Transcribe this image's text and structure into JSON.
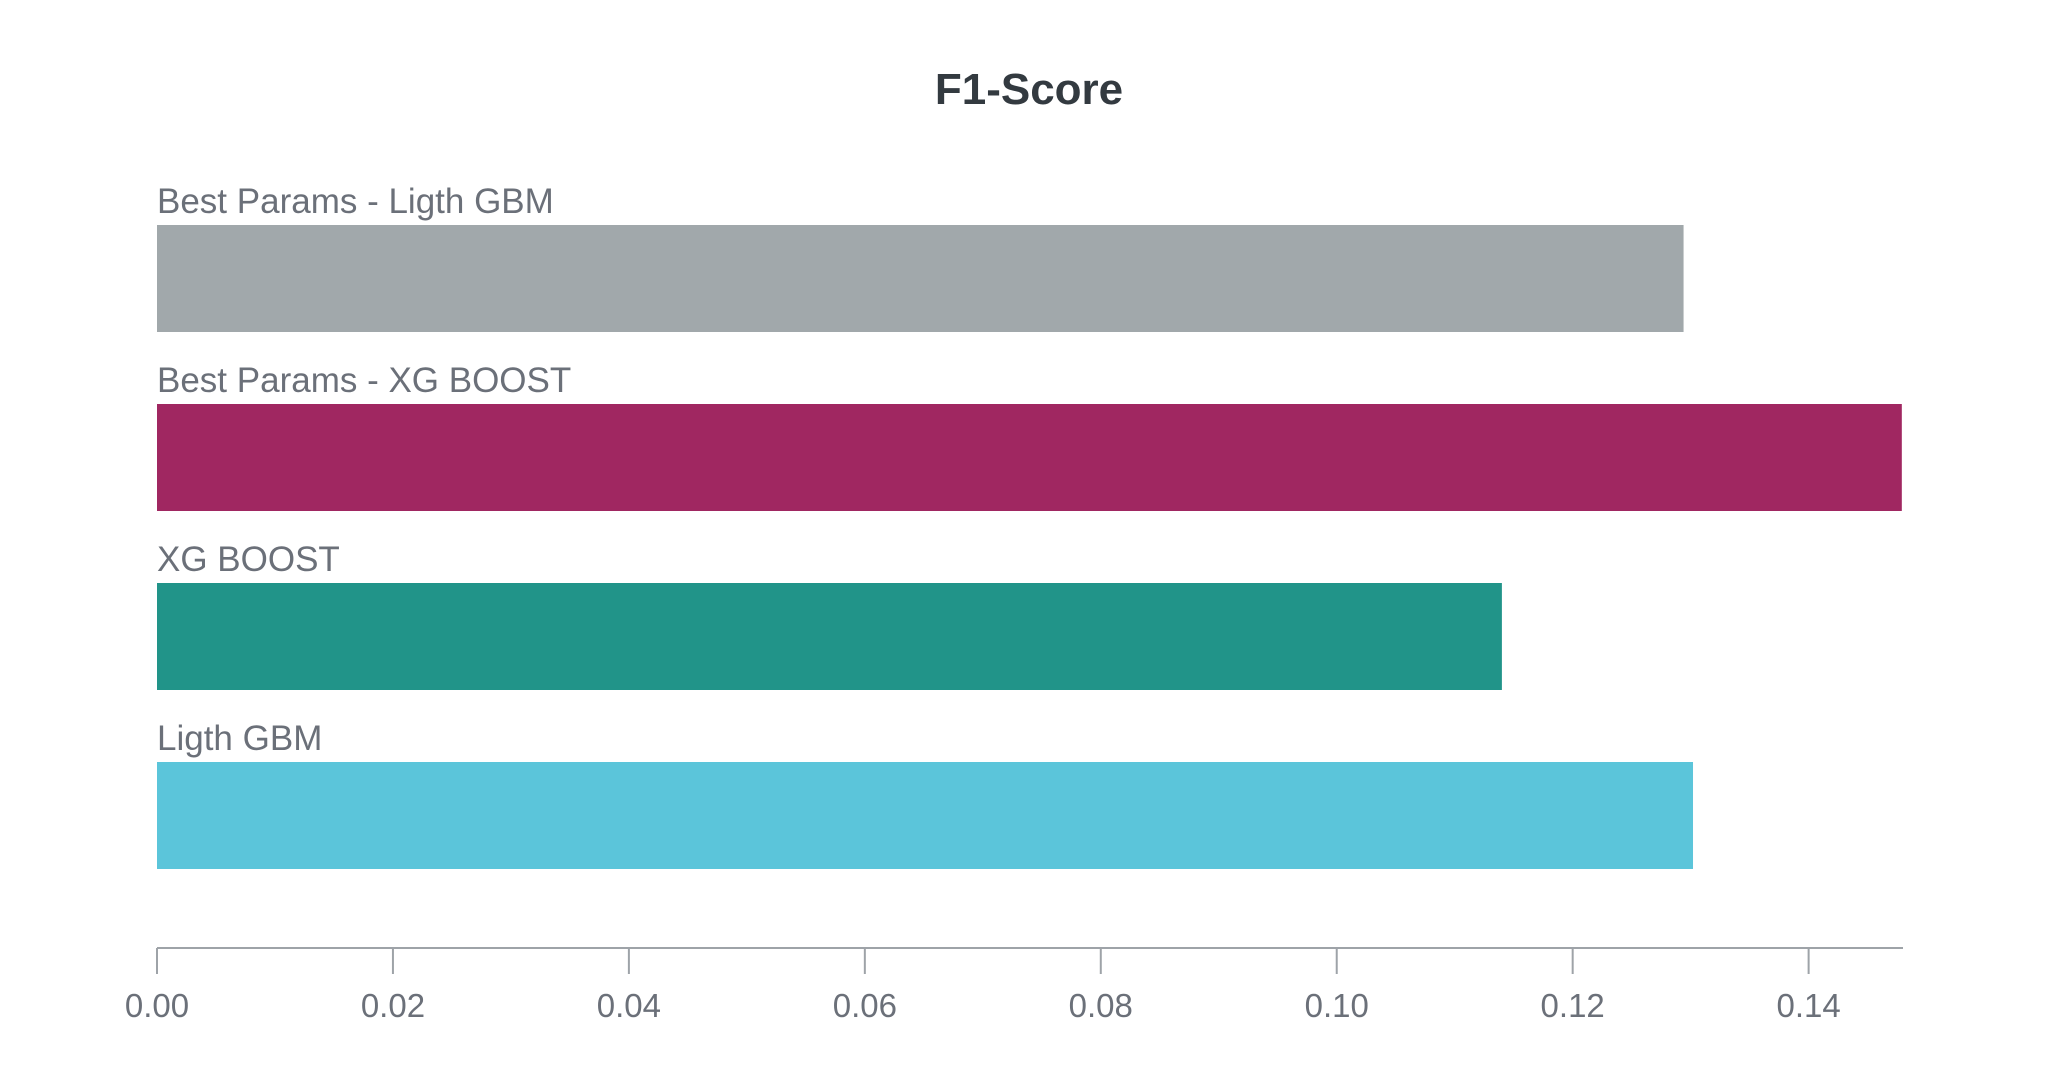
{
  "chart_data": {
    "type": "bar",
    "orientation": "horizontal",
    "title": "F1-Score",
    "xlabel": "",
    "ylabel": "",
    "categories": [
      "Best Params - Ligth GBM",
      "Best Params - XG BOOST",
      "XG BOOST",
      "Ligth GBM"
    ],
    "values": [
      0.1294,
      0.1479,
      0.114,
      0.1302
    ],
    "colors": [
      "#a1a8ab",
      "#a02761",
      "#219489",
      "#5bc5da"
    ],
    "xlim": [
      0,
      0.148
    ],
    "xticks": [
      0.0,
      0.02,
      0.04,
      0.06,
      0.08,
      0.1,
      0.12,
      0.14
    ],
    "xtick_labels": [
      "0.00",
      "0.02",
      "0.04",
      "0.06",
      "0.08",
      "0.10",
      "0.12",
      "0.14"
    ],
    "grid": false,
    "legend": "none"
  }
}
